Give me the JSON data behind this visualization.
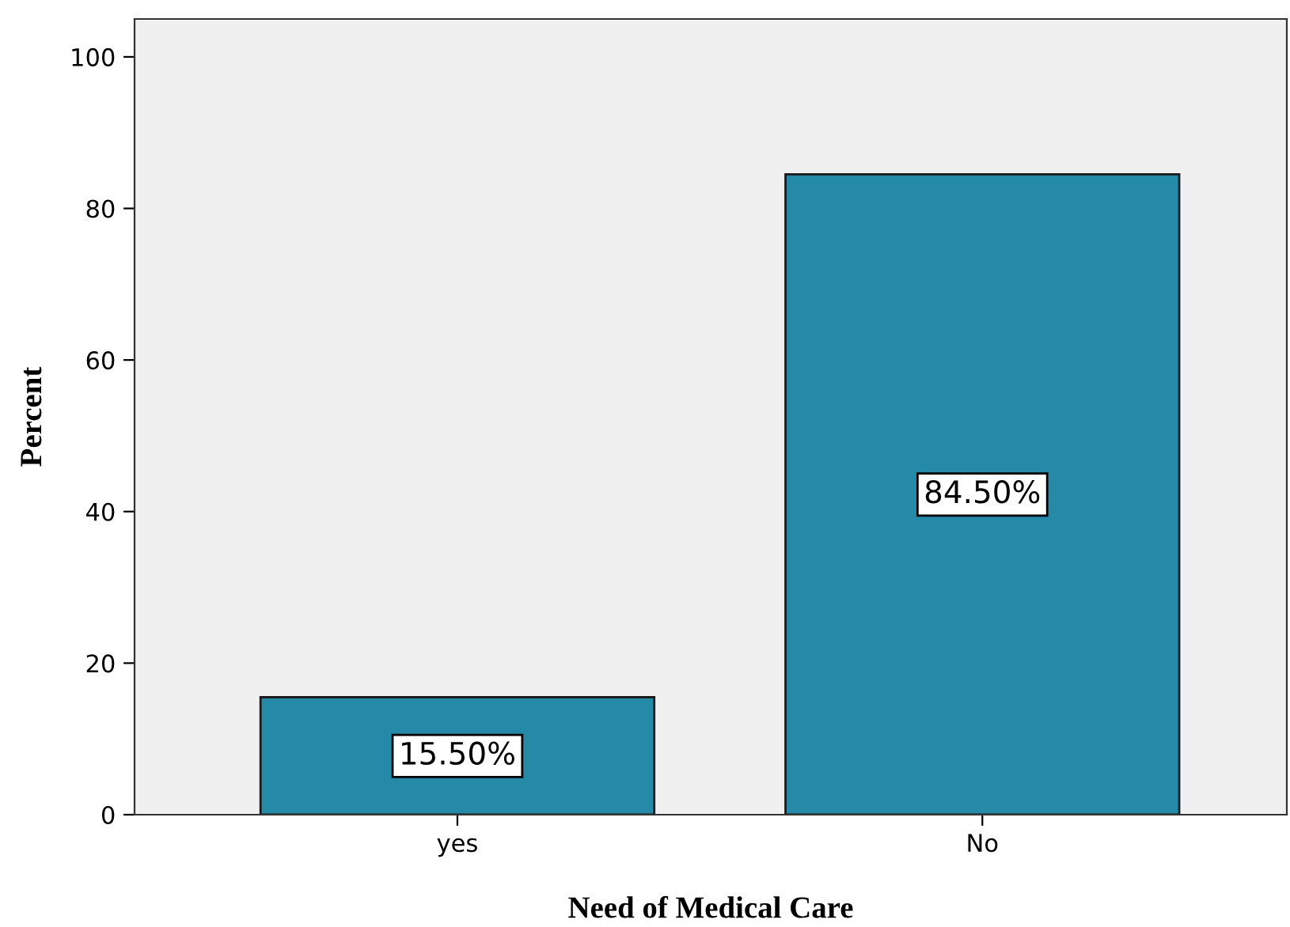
{
  "chart_data": {
    "type": "bar",
    "xlabel": "Need of Medical Care",
    "ylabel": "Percent",
    "categories": [
      "yes",
      "No"
    ],
    "values": [
      15.5,
      84.5
    ],
    "value_labels": [
      "15.50%",
      "84.50%"
    ],
    "color": "#248aa8",
    "ylim": [
      0,
      105
    ],
    "yticks": [
      0,
      20,
      40,
      60,
      80,
      100
    ],
    "grid": false,
    "legend": false
  }
}
